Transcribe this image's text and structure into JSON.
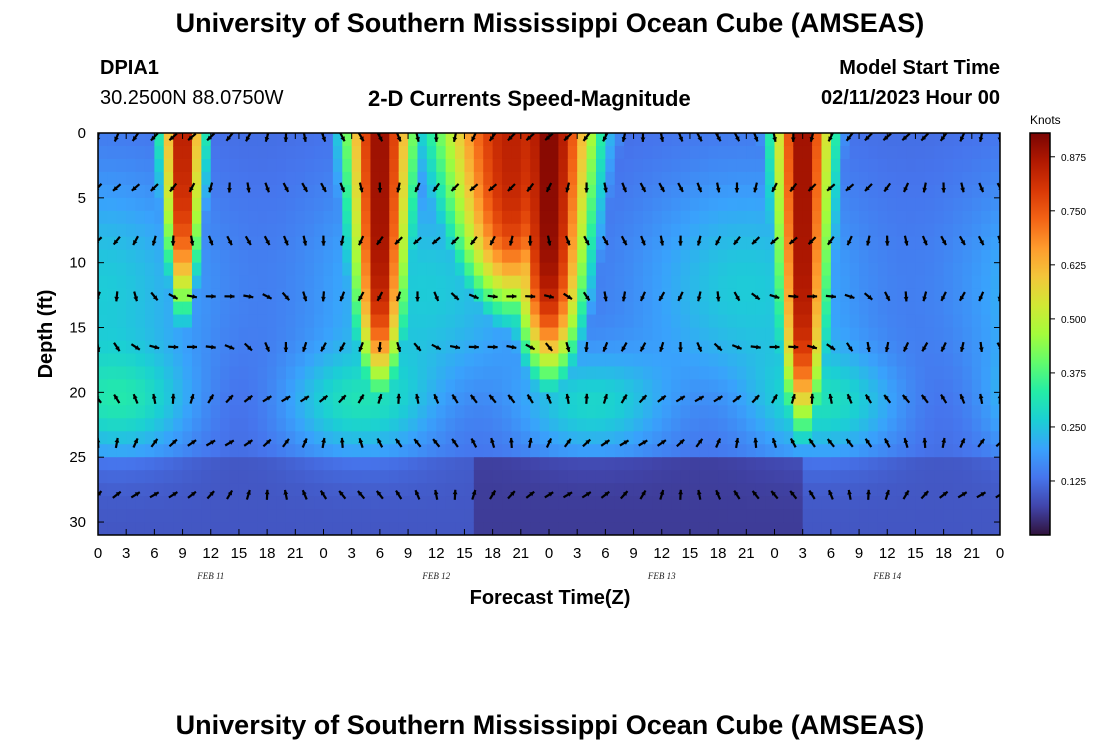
{
  "header": {
    "title": "University of Southern Mississippi Ocean Cube (AMSEAS)",
    "station_id": "DPIA1",
    "coords": "30.2500N  88.0750W",
    "subtitle": "2-D Currents Speed-Magnitude",
    "model_start_label": "Model Start Time",
    "model_start_value": "02/11/2023 Hour 00"
  },
  "footer": {
    "title": "University of Southern Mississippi Ocean Cube (AMSEAS)"
  },
  "chart_data": {
    "type": "heatmap",
    "title": "2-D Currents Speed-Magnitude",
    "xlabel": "Forecast Time(Z)",
    "ylabel": "Depth (ft)",
    "x_tick_labels": [
      "0",
      "3",
      "6",
      "9",
      "12",
      "15",
      "18",
      "21",
      "0",
      "3",
      "6",
      "9",
      "12",
      "15",
      "18",
      "21",
      "0",
      "3",
      "6",
      "9",
      "12",
      "15",
      "18",
      "21",
      "0",
      "3",
      "6",
      "9",
      "12",
      "15",
      "18",
      "21",
      "0"
    ],
    "x_range_hours": [
      0,
      96
    ],
    "date_labels": [
      {
        "label": "FEB 11",
        "hour": 12
      },
      {
        "label": "FEB 12",
        "hour": 36
      },
      {
        "label": "FEB 13",
        "hour": 60
      },
      {
        "label": "FEB 14",
        "hour": 84
      }
    ],
    "y_ticks": [
      0,
      5,
      10,
      15,
      20,
      25,
      30
    ],
    "y_range_ft": [
      0,
      31
    ],
    "colorbar": {
      "unit": "Knots",
      "ticks": [
        "0.875",
        "0.750",
        "0.625",
        "0.500",
        "0.375",
        "0.250",
        "0.125"
      ],
      "tick_values": [
        0.875,
        0.75,
        0.625,
        0.5,
        0.375,
        0.25,
        0.125
      ],
      "range": [
        0,
        0.93
      ],
      "colors": [
        "#30123b",
        "#4145ab",
        "#4675ed",
        "#39a2fc",
        "#1bcfd4",
        "#24eca6",
        "#61fc6c",
        "#a4fc3b",
        "#d1e834",
        "#f3c63a",
        "#fe9b2d",
        "#f36315",
        "#d93806",
        "#b11901",
        "#7a0403"
      ]
    },
    "arrow_rows_ft": [
      0.3,
      4.2,
      8.3,
      12.6,
      16.5,
      20.5,
      23.9,
      27.9
    ],
    "arrow_hours": [
      0,
      2,
      4,
      6,
      8,
      10,
      12,
      14,
      16,
      18,
      20,
      22,
      24,
      26,
      28,
      30,
      32,
      34,
      36,
      38,
      40,
      42,
      44,
      46,
      48,
      50,
      52,
      54,
      56,
      58,
      60,
      62,
      64,
      66,
      68,
      70,
      72,
      74,
      76,
      78,
      80,
      82,
      84,
      86,
      88,
      90,
      92,
      94,
      96
    ],
    "surface_jets": [
      {
        "center_hour": 9,
        "width_hours": 2.5,
        "bottom_ft": 13,
        "peak_knots": 0.88
      },
      {
        "center_hour": 30,
        "width_hours": 4,
        "bottom_ft": 19,
        "peak_knots": 0.9
      },
      {
        "center_hour": 44,
        "width_hours": 9,
        "bottom_ft": 13,
        "peak_knots": 0.85
      },
      {
        "center_hour": 48,
        "width_hours": 5.5,
        "bottom_ft": 18,
        "peak_knots": 0.92
      },
      {
        "center_hour": 75,
        "width_hours": 3.5,
        "bottom_ft": 22,
        "peak_knots": 0.9
      }
    ]
  }
}
